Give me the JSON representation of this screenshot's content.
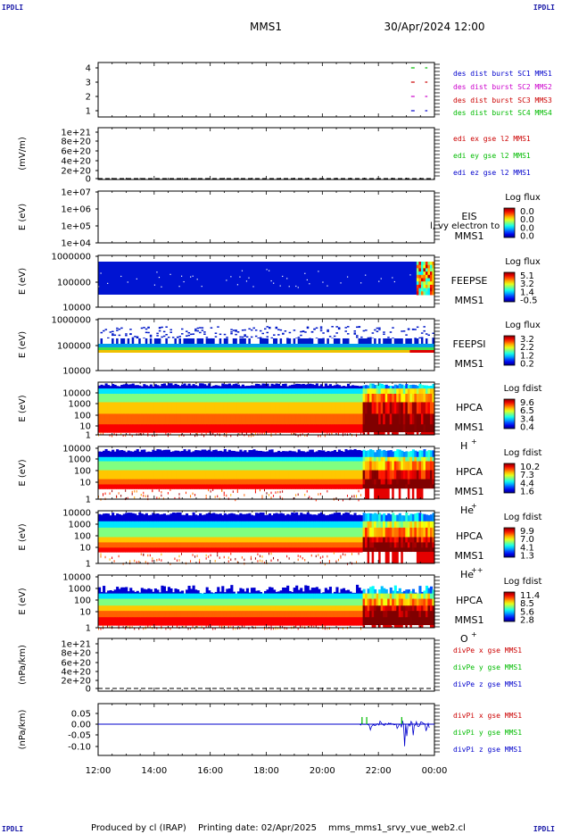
{
  "corner_label": "IPDLI",
  "header": {
    "spacecraft": "MMS1",
    "datetime": "30/Apr/2024 12:00"
  },
  "footer": {
    "produced_by": "Produced by cl (IRAP)",
    "printing_date": "Printing date: 02/Apr/2025",
    "filename": "mms_mms1_srvy_vue_web2.cl"
  },
  "colors": {
    "blue": "#0000cc",
    "magenta": "#cc00cc",
    "red": "#cc0000",
    "green": "#00bb00"
  },
  "chart_data": {
    "type": "heatmap",
    "x_range": [
      "12:00",
      "00:00"
    ],
    "x_ticks": [
      "12:00",
      "14:00",
      "16:00",
      "18:00",
      "20:00",
      "22:00",
      "00:00"
    ],
    "panels": [
      {
        "id": "burst",
        "type": "line",
        "yticks": [
          "4",
          "3",
          "2",
          "1"
        ],
        "legend": [
          {
            "label": "des dist burst SC1 MMS1",
            "color": "#0000cc"
          },
          {
            "label": "des dist burst SC2 MMS2",
            "color": "#cc00cc"
          },
          {
            "label": "des dist burst SC3 MMS3",
            "color": "#cc0000"
          },
          {
            "label": "des dist burst SC4 MMS4",
            "color": "#00bb00"
          }
        ],
        "series": [
          {
            "name": "SC4",
            "level": 4,
            "intervals": [
              [
                "23:10",
                "23:20"
              ],
              [
                "23:40",
                "23:45"
              ]
            ]
          },
          {
            "name": "SC3",
            "level": 3,
            "intervals": [
              [
                "23:10",
                "23:20"
              ],
              [
                "23:40",
                "23:45"
              ]
            ]
          },
          {
            "name": "SC2",
            "level": 2,
            "intervals": [
              [
                "23:10",
                "23:20"
              ],
              [
                "23:40",
                "23:45"
              ]
            ]
          },
          {
            "name": "SC1",
            "level": 1,
            "intervals": [
              [
                "23:10",
                "23:20"
              ],
              [
                "23:40",
                "23:45"
              ]
            ]
          }
        ]
      },
      {
        "id": "edi",
        "type": "line",
        "ylabel": "(mV/m)",
        "yticks": [
          "1e+21",
          "8e+20",
          "6e+20",
          "4e+20",
          "2e+20",
          "0"
        ],
        "legend": [
          {
            "label": "edi ex gse l2 MMS1",
            "color": "#cc0000"
          },
          {
            "label": "edi ey gse l2 MMS1",
            "color": "#00bb00"
          },
          {
            "label": "edi ez gse l2 MMS1",
            "color": "#0000cc"
          }
        ]
      },
      {
        "id": "eis",
        "type": "heatmap",
        "ylabel": "E (eV)",
        "yticks": [
          "1e+07",
          "1e+06",
          "1e+05",
          "1e+04"
        ],
        "title": "EIS",
        "subtitle": "MMS1",
        "overlay": "l, vy electron to",
        "cbar_title": "Log flux",
        "cbar_ticks": [
          "0.0",
          "0.0",
          "0.0",
          "0.0"
        ]
      },
      {
        "id": "feepse",
        "type": "heatmap",
        "ylabel": "E (eV)",
        "yticks": [
          "1000000",
          "100000",
          "10000"
        ],
        "title": "FEEPSE",
        "subtitle": "MMS1",
        "cbar_title": "Log flux",
        "cbar_ticks": [
          "5.1",
          "3.2",
          "1.4",
          "-0.5"
        ]
      },
      {
        "id": "feepsi",
        "type": "heatmap",
        "ylabel": "E (eV)",
        "yticks": [
          "1000000",
          "100000",
          "10000"
        ],
        "title": "FEEPSI",
        "subtitle": "MMS1",
        "cbar_title": "Log flux",
        "cbar_ticks": [
          "3.2",
          "2.2",
          "1.2",
          "0.2"
        ]
      },
      {
        "id": "hpca_h",
        "type": "heatmap",
        "ylabel": "E (eV)",
        "yticks": [
          "10000",
          "1000",
          "100",
          "10",
          "1"
        ],
        "title": "HPCA",
        "subtitle": "MMS1",
        "species": "H",
        "charge": "+",
        "cbar_title": "Log fdist",
        "cbar_ticks": [
          "9.6",
          "6.5",
          "3.4",
          "0.4"
        ]
      },
      {
        "id": "hpca_he",
        "type": "heatmap",
        "ylabel": "E (eV)",
        "yticks": [
          "10000",
          "1000",
          "100",
          "10",
          "1"
        ],
        "title": "HPCA",
        "subtitle": "MMS1",
        "species": "He",
        "charge": "+",
        "cbar_title": "Log fdist",
        "cbar_ticks": [
          "10.2",
          "7.3",
          "4.4",
          "1.6"
        ]
      },
      {
        "id": "hpca_hepp",
        "type": "heatmap",
        "ylabel": "E (eV)",
        "yticks": [
          "10000",
          "1000",
          "100",
          "10",
          "1"
        ],
        "title": "HPCA",
        "subtitle": "MMS1",
        "species": "He",
        "charge": "++",
        "cbar_title": "Log fdist",
        "cbar_ticks": [
          "9.9",
          "7.0",
          "4.1",
          "1.3"
        ]
      },
      {
        "id": "hpca_o",
        "type": "heatmap",
        "ylabel": "E (eV)",
        "yticks": [
          "10000",
          "1000",
          "100",
          "10",
          "1"
        ],
        "title": "HPCA",
        "subtitle": "MMS1",
        "species": "O",
        "charge": "+",
        "cbar_title": "Log fdist",
        "cbar_ticks": [
          "11.4",
          "8.5",
          "5.6",
          "2.8"
        ]
      },
      {
        "id": "divpe",
        "type": "line",
        "ylabel": "(nPa/km)",
        "yticks": [
          "1e+21",
          "8e+20",
          "6e+20",
          "4e+20",
          "2e+20",
          "0"
        ],
        "legend": [
          {
            "label": "divPe x gse MMS1",
            "color": "#cc0000"
          },
          {
            "label": "divPe y gse MMS1",
            "color": "#00bb00"
          },
          {
            "label": "divPe z gse MMS1",
            "color": "#0000cc"
          }
        ]
      },
      {
        "id": "divpi",
        "type": "line",
        "ylabel": "(nPa/km)",
        "yticks": [
          "0.05",
          "0.00",
          "-0.05",
          "-0.10"
        ],
        "ylim": [
          -0.13,
          0.08
        ],
        "legend": [
          {
            "label": "divPi x gse MMS1",
            "color": "#cc0000"
          },
          {
            "label": "divPi y gse MMS1",
            "color": "#00bb00"
          },
          {
            "label": "divPi z gse MMS1",
            "color": "#0000cc"
          }
        ]
      }
    ]
  }
}
